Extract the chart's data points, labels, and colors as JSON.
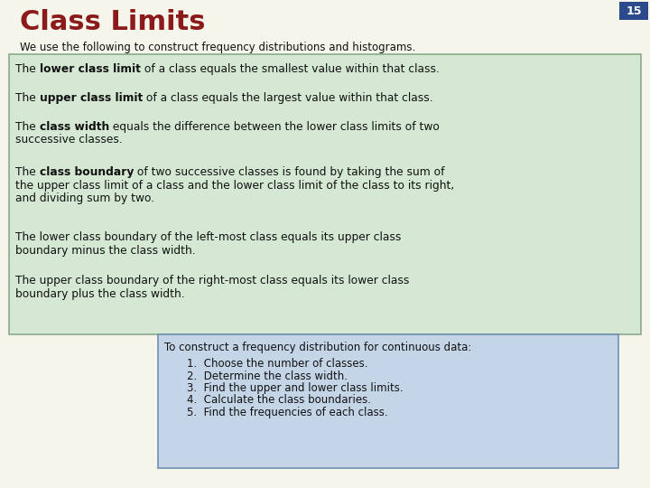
{
  "title": "Class Limits",
  "title_color": "#8B1A1A",
  "page_number": "15",
  "page_number_bg": "#2B4A8B",
  "page_number_color": "#FFFFFF",
  "background_color": "#F5F5EC",
  "subtitle": "We use the following to construct frequency distributions and histograms.",
  "green_box_bg": "#D4E8D4",
  "green_box_border": "#8AAA8A",
  "blue_box_bg": "#C5D5E8",
  "blue_box_border": "#7090B0",
  "blue_box_title": "To construct a frequency distribution for continuous data:",
  "blue_box_items": [
    "Choose the number of classes.",
    "Determine the class width.",
    "Find the upper and lower class limits.",
    "Calculate the class boundaries.",
    "Find the frequencies of each class."
  ]
}
